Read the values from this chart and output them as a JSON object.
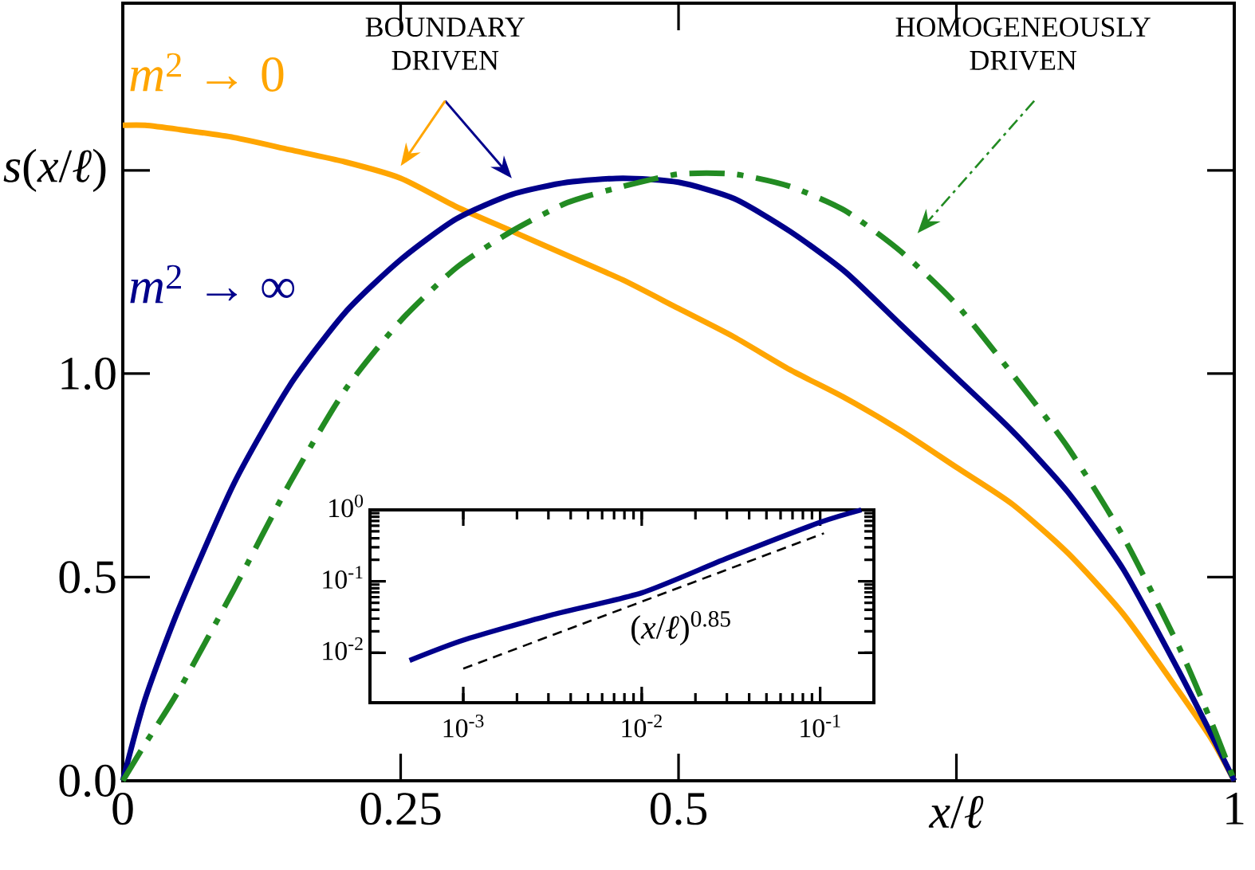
{
  "chart_data": [
    {
      "type": "line",
      "xlabel": "*x*/*ℓ*",
      "ylabel": "*s*(*x*/*ℓ*)",
      "x": [
        0,
        0.02,
        0.05,
        0.1,
        0.15,
        0.2,
        0.25,
        0.3,
        0.35,
        0.4,
        0.45,
        0.5,
        0.55,
        0.6,
        0.65,
        0.7,
        0.75,
        0.8,
        0.85,
        0.9,
        0.95,
        0.98,
        1
      ],
      "series": [
        {
          "name": "*m*$^{2}$ → 0",
          "color": "#ffa500",
          "line_style": "solid",
          "values": [
            1.61,
            1.61,
            1.6,
            1.58,
            1.55,
            1.52,
            1.48,
            1.41,
            1.35,
            1.29,
            1.23,
            1.16,
            1.09,
            1.01,
            0.94,
            0.86,
            0.77,
            0.68,
            0.56,
            0.41,
            0.22,
            0.1,
            0
          ]
        },
        {
          "name": "*m*$^{2}$ → ∞",
          "color": "#00008b",
          "line_style": "solid",
          "values": [
            0,
            0.2,
            0.42,
            0.73,
            0.97,
            1.15,
            1.28,
            1.38,
            1.44,
            1.47,
            1.48,
            1.47,
            1.43,
            1.35,
            1.25,
            1.12,
            0.99,
            0.86,
            0.71,
            0.52,
            0.27,
            0.11,
            0
          ]
        },
        {
          "color": "#228b22",
          "line_style": "dashdot",
          "values": [
            0,
            0.09,
            0.22,
            0.47,
            0.73,
            0.96,
            1.13,
            1.26,
            1.35,
            1.42,
            1.46,
            1.49,
            1.49,
            1.46,
            1.4,
            1.3,
            1.17,
            1.0,
            0.82,
            0.6,
            0.33,
            0.14,
            0
          ]
        }
      ],
      "xlim": [
        0,
        1
      ],
      "ylim": [
        0,
        1.91
      ],
      "xticks": [
        {
          "value": 0,
          "label": "0"
        },
        0.25,
        0.5,
        {
          "value": 1,
          "label": "1"
        }
      ],
      "yticks": [
        {
          "value": 0,
          "label": "0.0"
        },
        0.5,
        {
          "value": 1,
          "label": "1.0"
        }
      ],
      "marker": "none",
      "legend": false,
      "grid": false,
      "annotations": [
        "BOUNDARY DRIVEN",
        "HOMOGENEOUSLY DRIVEN"
      ]
    },
    {
      "type": "line",
      "log": "xy",
      "series": [
        {
          "color": "#00008b",
          "line_style": "solid",
          "x": [
            0.0005,
            0.001,
            0.003,
            0.01,
            0.03,
            0.1,
            0.17
          ],
          "values": [
            0.0078,
            0.015,
            0.033,
            0.069,
            0.21,
            0.67,
            1.0
          ]
        },
        {
          "name": "(*x*/*ℓ*)$^{0.85}$",
          "color": "#000000",
          "line_style": "dashed",
          "x": [
            0.001,
            0.105
          ],
          "values": [
            0.006,
            0.47
          ]
        }
      ],
      "xlim": [
        0.0003,
        0.2
      ],
      "ylim": [
        0.002,
        1
      ],
      "xticks": [
        {
          "value": 0.001,
          "label": "10$^{-3}$"
        },
        {
          "value": 0.01,
          "label": "10$^{-2}$"
        },
        {
          "value": 0.1,
          "label": "10$^{-1}$"
        }
      ],
      "yticks": [
        {
          "value": 0.01,
          "label": "10$^{-2}$"
        },
        {
          "value": 0.1,
          "label": "10$^{-1}$"
        },
        {
          "value": 1,
          "label": "10$^{0}$"
        }
      ],
      "marker": "none",
      "legend": false,
      "grid": false
    }
  ]
}
